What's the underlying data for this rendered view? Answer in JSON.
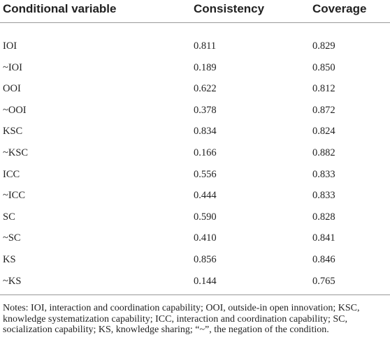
{
  "table": {
    "header": [
      "Conditional variable",
      "Consistency",
      "Coverage"
    ],
    "rows": [
      [
        "IOI",
        "0.811",
        "0.829"
      ],
      [
        "~IOI",
        "0.189",
        "0.850"
      ],
      [
        "OOI",
        "0.622",
        "0.812"
      ],
      [
        "~OOI",
        "0.378",
        "0.872"
      ],
      [
        "KSC",
        "0.834",
        "0.824"
      ],
      [
        "~KSC",
        "0.166",
        "0.882"
      ],
      [
        "ICC",
        "0.556",
        "0.833"
      ],
      [
        "~ICC",
        "0.444",
        "0.833"
      ],
      [
        "SC",
        "0.590",
        "0.828"
      ],
      [
        "~SC",
        "0.410",
        "0.841"
      ],
      [
        "KS",
        "0.856",
        "0.846"
      ],
      [
        "~KS",
        "0.144",
        "0.765"
      ]
    ]
  },
  "notes": "Notes: IOI, interaction and coordination capability; OOI, outside-in open innovation; KSC, knowledge systematization capability; ICC, interaction and coordination capability; SC, socialization capability; KS, knowledge sharing; “~”, the negation of the condition."
}
